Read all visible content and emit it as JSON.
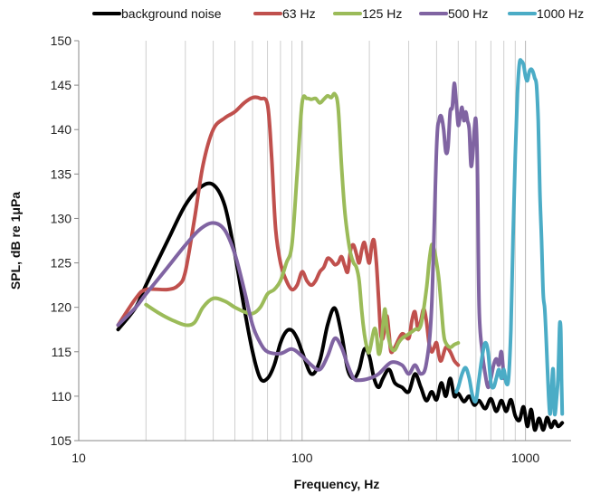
{
  "chart_data": {
    "type": "line",
    "xscale": "log",
    "xlim": [
      10,
      1600
    ],
    "ylim": [
      105,
      150
    ],
    "grid": "vertical",
    "xlabel": "Frequency, Hz",
    "ylabel": "SPL, dB re 1μPa",
    "x_ticks": [
      "10",
      "100",
      "1000"
    ],
    "y_ticks": [
      "105",
      "110",
      "115",
      "120",
      "125",
      "130",
      "135",
      "140",
      "145",
      "150"
    ],
    "legend_position": "top",
    "series": [
      {
        "name": "background noise",
        "color": "#000000",
        "points": [
          [
            15,
            117.5
          ],
          [
            18,
            120
          ],
          [
            20,
            122.5
          ],
          [
            25,
            127.5
          ],
          [
            30,
            131.5
          ],
          [
            35,
            133.5
          ],
          [
            40,
            133.8
          ],
          [
            45,
            131.5
          ],
          [
            50,
            126
          ],
          [
            55,
            120
          ],
          [
            60,
            115
          ],
          [
            65,
            112
          ],
          [
            70,
            112
          ],
          [
            75,
            113.5
          ],
          [
            80,
            116
          ],
          [
            85,
            117.3
          ],
          [
            90,
            117.4
          ],
          [
            95,
            116.5
          ],
          [
            100,
            115
          ],
          [
            110,
            112.5
          ],
          [
            120,
            114
          ],
          [
            130,
            118
          ],
          [
            140,
            119.9
          ],
          [
            150,
            117
          ],
          [
            160,
            113
          ],
          [
            170,
            112
          ],
          [
            180,
            113
          ],
          [
            190,
            115.3
          ],
          [
            200,
            114.5
          ],
          [
            210,
            112
          ],
          [
            220,
            111
          ],
          [
            230,
            112
          ],
          [
            245,
            113
          ],
          [
            260,
            111.5
          ],
          [
            280,
            111
          ],
          [
            300,
            110.5
          ],
          [
            320,
            112.5
          ],
          [
            340,
            111
          ],
          [
            360,
            109.5
          ],
          [
            380,
            110.5
          ],
          [
            400,
            109.6
          ],
          [
            420,
            111.5
          ],
          [
            440,
            110
          ],
          [
            460,
            112
          ],
          [
            480,
            110
          ],
          [
            500,
            110.3
          ],
          [
            530,
            109.4
          ],
          [
            560,
            110
          ],
          [
            590,
            109
          ],
          [
            620,
            109.5
          ],
          [
            660,
            108.6
          ],
          [
            700,
            109.7
          ],
          [
            740,
            108.3
          ],
          [
            780,
            109.5
          ],
          [
            820,
            108.3
          ],
          [
            860,
            109.6
          ],
          [
            900,
            107.8
          ],
          [
            940,
            107.3
          ],
          [
            980,
            108.8
          ],
          [
            1020,
            106.6
          ],
          [
            1060,
            108.5
          ],
          [
            1100,
            106.2
          ],
          [
            1150,
            107.5
          ],
          [
            1200,
            106.2
          ],
          [
            1250,
            107.6
          ],
          [
            1300,
            106.5
          ],
          [
            1350,
            107.2
          ],
          [
            1400,
            106.6
          ],
          [
            1460,
            107
          ]
        ]
      },
      {
        "name": "63 Hz",
        "color": "#c0504d",
        "points": [
          [
            15,
            118
          ],
          [
            18,
            121
          ],
          [
            20,
            122
          ],
          [
            25,
            122
          ],
          [
            28,
            122.5
          ],
          [
            30,
            124
          ],
          [
            33,
            130
          ],
          [
            36,
            136
          ],
          [
            40,
            140
          ],
          [
            45,
            141.3
          ],
          [
            50,
            142
          ],
          [
            55,
            143
          ],
          [
            60,
            143.6
          ],
          [
            65,
            143.5
          ],
          [
            70,
            142.8
          ],
          [
            73,
            137
          ],
          [
            76,
            129
          ],
          [
            80,
            125
          ],
          [
            85,
            123
          ],
          [
            90,
            122
          ],
          [
            95,
            122.5
          ],
          [
            100,
            124
          ],
          [
            105,
            123
          ],
          [
            110,
            122.5
          ],
          [
            115,
            123
          ],
          [
            120,
            124
          ],
          [
            125,
            124.5
          ],
          [
            130,
            125.5
          ],
          [
            135,
            125.3
          ],
          [
            140,
            124.8
          ],
          [
            145,
            125
          ],
          [
            150,
            125.7
          ],
          [
            155,
            124.7
          ],
          [
            160,
            124
          ],
          [
            165,
            126.5
          ],
          [
            170,
            127
          ],
          [
            175,
            126
          ],
          [
            180,
            125
          ],
          [
            185,
            126.5
          ],
          [
            190,
            127.3
          ],
          [
            195,
            126
          ],
          [
            200,
            125
          ],
          [
            205,
            127
          ],
          [
            210,
            127.5
          ],
          [
            215,
            125
          ],
          [
            220,
            121
          ],
          [
            225,
            117
          ],
          [
            230,
            116.5
          ],
          [
            235,
            118
          ],
          [
            240,
            119
          ],
          [
            245,
            117
          ],
          [
            250,
            115
          ],
          [
            260,
            115.5
          ],
          [
            280,
            117
          ],
          [
            300,
            116.5
          ],
          [
            310,
            118.5
          ],
          [
            320,
            119.5
          ],
          [
            330,
            117.5
          ],
          [
            340,
            118.5
          ],
          [
            350,
            119.8
          ],
          [
            360,
            118.5
          ],
          [
            370,
            116
          ],
          [
            380,
            115
          ],
          [
            390,
            115.5
          ],
          [
            400,
            116
          ],
          [
            410,
            114.5
          ],
          [
            420,
            114
          ],
          [
            440,
            115.5
          ],
          [
            460,
            115
          ],
          [
            480,
            114
          ],
          [
            500,
            113.5
          ]
        ]
      },
      {
        "name": "125 Hz",
        "color": "#9bbb59",
        "points": [
          [
            20,
            120.3
          ],
          [
            23,
            119.3
          ],
          [
            26,
            118.6
          ],
          [
            30,
            118
          ],
          [
            33,
            118.3
          ],
          [
            36,
            120
          ],
          [
            40,
            121
          ],
          [
            45,
            120.7
          ],
          [
            50,
            120
          ],
          [
            55,
            119.5
          ],
          [
            60,
            119.3
          ],
          [
            65,
            120
          ],
          [
            70,
            121.5
          ],
          [
            75,
            122
          ],
          [
            80,
            123
          ],
          [
            85,
            125
          ],
          [
            90,
            127
          ],
          [
            95,
            135
          ],
          [
            100,
            143
          ],
          [
            105,
            143.5
          ],
          [
            110,
            143.4
          ],
          [
            115,
            143.5
          ],
          [
            120,
            143
          ],
          [
            125,
            143.4
          ],
          [
            130,
            143.8
          ],
          [
            135,
            143.6
          ],
          [
            140,
            144
          ],
          [
            145,
            142.5
          ],
          [
            150,
            136
          ],
          [
            155,
            131
          ],
          [
            160,
            128
          ],
          [
            165,
            126
          ],
          [
            170,
            125
          ],
          [
            175,
            124.5
          ],
          [
            180,
            123
          ],
          [
            185,
            119.5
          ],
          [
            190,
            117
          ],
          [
            195,
            115.5
          ],
          [
            200,
            115
          ],
          [
            210,
            117.5
          ],
          [
            215,
            117
          ],
          [
            220,
            114.8
          ],
          [
            225,
            115.5
          ],
          [
            230,
            118
          ],
          [
            235,
            119.8
          ],
          [
            240,
            117.5
          ],
          [
            250,
            115.5
          ],
          [
            260,
            115.2
          ],
          [
            270,
            116
          ],
          [
            280,
            116.5
          ],
          [
            300,
            117
          ],
          [
            320,
            117.5
          ],
          [
            340,
            118
          ],
          [
            360,
            122
          ],
          [
            370,
            125
          ],
          [
            380,
            127
          ],
          [
            390,
            126.5
          ],
          [
            400,
            125
          ],
          [
            410,
            123
          ],
          [
            420,
            120
          ],
          [
            430,
            117
          ],
          [
            440,
            116
          ],
          [
            460,
            115.5
          ],
          [
            480,
            115.8
          ],
          [
            500,
            116
          ]
        ]
      },
      {
        "name": "500 Hz",
        "color": "#8064a2",
        "points": [
          [
            15,
            118
          ],
          [
            18,
            120
          ],
          [
            20,
            121.5
          ],
          [
            25,
            124.5
          ],
          [
            30,
            127
          ],
          [
            35,
            128.8
          ],
          [
            40,
            129.5
          ],
          [
            45,
            128.7
          ],
          [
            50,
            126
          ],
          [
            55,
            122
          ],
          [
            60,
            118
          ],
          [
            65,
            116
          ],
          [
            70,
            115
          ],
          [
            80,
            114.8
          ],
          [
            90,
            115.3
          ],
          [
            100,
            114.5
          ],
          [
            110,
            113.5
          ],
          [
            120,
            113
          ],
          [
            130,
            114.5
          ],
          [
            140,
            116.5
          ],
          [
            150,
            115.5
          ],
          [
            160,
            113.5
          ],
          [
            170,
            112
          ],
          [
            180,
            111.8
          ],
          [
            200,
            112
          ],
          [
            220,
            112.5
          ],
          [
            250,
            113.8
          ],
          [
            280,
            113.5
          ],
          [
            300,
            112.5
          ],
          [
            320,
            113.5
          ],
          [
            340,
            112.5
          ],
          [
            360,
            113.7
          ],
          [
            380,
            120
          ],
          [
            400,
            138
          ],
          [
            410,
            141
          ],
          [
            420,
            141.5
          ],
          [
            430,
            140
          ],
          [
            440,
            137.5
          ],
          [
            450,
            138
          ],
          [
            460,
            142
          ],
          [
            470,
            142.5
          ],
          [
            480,
            145.2
          ],
          [
            490,
            143
          ],
          [
            500,
            140.5
          ],
          [
            510,
            141.5
          ],
          [
            520,
            142.5
          ],
          [
            530,
            141
          ],
          [
            540,
            142
          ],
          [
            550,
            141
          ],
          [
            560,
            140
          ],
          [
            570,
            136
          ],
          [
            580,
            137
          ],
          [
            590,
            140
          ],
          [
            600,
            141
          ],
          [
            610,
            135
          ],
          [
            620,
            120
          ],
          [
            640,
            115
          ],
          [
            660,
            112.5
          ],
          [
            680,
            111
          ],
          [
            700,
            112
          ],
          [
            720,
            113.5
          ],
          [
            740,
            114.2
          ],
          [
            760,
            113.5
          ],
          [
            780,
            115
          ],
          [
            800,
            112
          ]
        ]
      },
      {
        "name": "1000 Hz",
        "color": "#4bacc6",
        "points": [
          [
            490,
            110.5
          ],
          [
            500,
            111
          ],
          [
            520,
            112.5
          ],
          [
            540,
            113.2
          ],
          [
            560,
            112
          ],
          [
            580,
            110
          ],
          [
            600,
            109.5
          ],
          [
            620,
            112
          ],
          [
            640,
            114.5
          ],
          [
            660,
            116
          ],
          [
            680,
            115
          ],
          [
            700,
            111.5
          ],
          [
            720,
            111
          ],
          [
            740,
            112
          ],
          [
            760,
            113
          ],
          [
            780,
            112
          ],
          [
            800,
            113
          ],
          [
            820,
            111.5
          ],
          [
            840,
            112
          ],
          [
            860,
            117.5
          ],
          [
            880,
            128
          ],
          [
            900,
            137
          ],
          [
            920,
            144
          ],
          [
            940,
            147.5
          ],
          [
            960,
            147.7
          ],
          [
            980,
            147.3
          ],
          [
            1000,
            146
          ],
          [
            1020,
            145.5
          ],
          [
            1040,
            146.5
          ],
          [
            1060,
            146.8
          ],
          [
            1080,
            146.5
          ],
          [
            1100,
            145.8
          ],
          [
            1120,
            145
          ],
          [
            1140,
            141
          ],
          [
            1160,
            133
          ],
          [
            1180,
            127.5
          ],
          [
            1200,
            121.5
          ],
          [
            1220,
            119.8
          ],
          [
            1240,
            116
          ],
          [
            1270,
            110
          ],
          [
            1290,
            108
          ],
          [
            1310,
            111
          ],
          [
            1330,
            113
          ],
          [
            1350,
            108
          ],
          [
            1380,
            110
          ],
          [
            1400,
            112.3
          ],
          [
            1420,
            117.5
          ],
          [
            1430,
            118.3
          ],
          [
            1440,
            117
          ],
          [
            1450,
            112
          ],
          [
            1460,
            108
          ]
        ]
      }
    ]
  }
}
